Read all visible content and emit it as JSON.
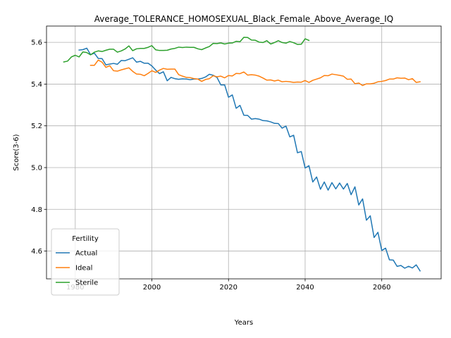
{
  "chart_data": {
    "type": "line",
    "title": "Average_TOLERANCE_HOMOSEXUAL_Black_Female_Above_Average_IQ",
    "xlabel": "Years",
    "ylabel": "Score(3-6)",
    "xlim": [
      1972.5,
      2075.5
    ],
    "ylim": [
      4.467,
      5.678
    ],
    "xticks": [
      1980,
      2000,
      2020,
      2040,
      2060
    ],
    "yticks": [
      4.6,
      4.8,
      5.0,
      5.2,
      5.4,
      5.6
    ],
    "xtick_labels": [
      "1980",
      "2000",
      "2020",
      "2040",
      "2060"
    ],
    "ytick_labels": [
      "4.6",
      "4.8",
      "5.0",
      "5.2",
      "5.4",
      "5.6"
    ],
    "grid": true,
    "legend_title": "Fertility",
    "legend_position": "lower-left",
    "series": [
      {
        "name": "Actual",
        "color": "#1f77b4",
        "x": [
          1981,
          1982,
          1983,
          1984,
          1985,
          1986,
          1987,
          1988,
          1989,
          1990,
          1991,
          1992,
          1993,
          1994,
          1995,
          1996,
          1997,
          1998,
          1999,
          2000,
          2001,
          2002,
          2003,
          2004,
          2005,
          2006,
          2007,
          2008,
          2009,
          2010,
          2011,
          2012,
          2013,
          2014,
          2015,
          2016,
          2017,
          2018,
          2019,
          2020,
          2021,
          2022,
          2023,
          2024,
          2025,
          2026,
          2027,
          2028,
          2029,
          2030,
          2031,
          2032,
          2033,
          2034,
          2035,
          2036,
          2037,
          2038,
          2039,
          2040,
          2041,
          2042,
          2043,
          2044,
          2045,
          2046,
          2047,
          2048,
          2049,
          2050,
          2051,
          2052,
          2053,
          2054,
          2055,
          2056,
          2057,
          2058,
          2059,
          2060,
          2061,
          2062,
          2063,
          2064,
          2065,
          2066,
          2067,
          2068,
          2069,
          2070
        ],
        "values": [
          5.563,
          5.565,
          5.572,
          5.541,
          5.548,
          5.523,
          5.522,
          5.492,
          5.496,
          5.499,
          5.495,
          5.513,
          5.512,
          5.519,
          5.526,
          5.505,
          5.509,
          5.5,
          5.5,
          5.487,
          5.467,
          5.45,
          5.459,
          5.416,
          5.432,
          5.426,
          5.423,
          5.425,
          5.424,
          5.421,
          5.424,
          5.424,
          5.427,
          5.434,
          5.447,
          5.442,
          5.432,
          5.396,
          5.396,
          5.337,
          5.348,
          5.284,
          5.298,
          5.251,
          5.25,
          5.232,
          5.235,
          5.232,
          5.225,
          5.224,
          5.219,
          5.212,
          5.211,
          5.189,
          5.199,
          5.147,
          5.155,
          5.071,
          5.077,
          4.998,
          5.009,
          4.931,
          4.955,
          4.896,
          4.931,
          4.892,
          4.928,
          4.898,
          4.926,
          4.897,
          4.924,
          4.87,
          4.908,
          4.821,
          4.85,
          4.748,
          4.769,
          4.665,
          4.69,
          4.603,
          4.614,
          4.558,
          4.557,
          4.527,
          4.531,
          4.518,
          4.527,
          4.519,
          4.534,
          4.505
        ]
      },
      {
        "name": "Ideal",
        "color": "#ff7f0e",
        "x": [
          1984,
          1985,
          1986,
          1987,
          1988,
          1989,
          1990,
          1991,
          1992,
          1993,
          1994,
          1995,
          1996,
          1997,
          1998,
          1999,
          2000,
          2001,
          2002,
          2003,
          2004,
          2005,
          2006,
          2007,
          2008,
          2009,
          2010,
          2011,
          2012,
          2013,
          2014,
          2015,
          2016,
          2017,
          2018,
          2019,
          2020,
          2021,
          2022,
          2023,
          2024,
          2025,
          2026,
          2027,
          2028,
          2029,
          2030,
          2031,
          2032,
          2033,
          2034,
          2035,
          2036,
          2037,
          2038,
          2039,
          2040,
          2041,
          2042,
          2043,
          2044,
          2045,
          2046,
          2047,
          2048,
          2049,
          2050,
          2051,
          2052,
          2053,
          2054,
          2055,
          2056,
          2057,
          2058,
          2059,
          2060,
          2061,
          2062,
          2063,
          2064,
          2065,
          2066,
          2067,
          2068,
          2069,
          2070
        ],
        "values": [
          5.49,
          5.49,
          5.515,
          5.505,
          5.48,
          5.488,
          5.464,
          5.462,
          5.468,
          5.473,
          5.478,
          5.461,
          5.448,
          5.447,
          5.44,
          5.451,
          5.464,
          5.456,
          5.467,
          5.475,
          5.471,
          5.472,
          5.472,
          5.445,
          5.438,
          5.432,
          5.431,
          5.426,
          5.424,
          5.413,
          5.422,
          5.426,
          5.44,
          5.435,
          5.438,
          5.43,
          5.441,
          5.439,
          5.451,
          5.45,
          5.458,
          5.443,
          5.445,
          5.443,
          5.438,
          5.429,
          5.419,
          5.42,
          5.415,
          5.419,
          5.411,
          5.413,
          5.411,
          5.408,
          5.41,
          5.409,
          5.417,
          5.408,
          5.418,
          5.424,
          5.43,
          5.441,
          5.44,
          5.448,
          5.445,
          5.442,
          5.438,
          5.423,
          5.424,
          5.402,
          5.405,
          5.393,
          5.401,
          5.401,
          5.404,
          5.411,
          5.413,
          5.417,
          5.424,
          5.424,
          5.43,
          5.428,
          5.429,
          5.421,
          5.426,
          5.408,
          5.411
        ]
      },
      {
        "name": "Sterile",
        "color": "#2ca02c",
        "x": [
          1977,
          1978,
          1979,
          1980,
          1981,
          1982,
          1983,
          1984,
          1985,
          1986,
          1987,
          1988,
          1989,
          1990,
          1991,
          1992,
          1993,
          1994,
          1995,
          1996,
          1997,
          1998,
          1999,
          2000,
          2001,
          2002,
          2003,
          2004,
          2005,
          2006,
          2007,
          2008,
          2009,
          2010,
          2011,
          2012,
          2013,
          2014,
          2015,
          2016,
          2017,
          2018,
          2019,
          2020,
          2021,
          2022,
          2023,
          2024,
          2025,
          2026,
          2027,
          2028,
          2029,
          2030,
          2031,
          2032,
          2033,
          2034,
          2035,
          2036,
          2037,
          2038,
          2039,
          2040,
          2041
        ],
        "values": [
          5.506,
          5.51,
          5.53,
          5.538,
          5.53,
          5.554,
          5.551,
          5.54,
          5.553,
          5.559,
          5.556,
          5.562,
          5.567,
          5.567,
          5.553,
          5.559,
          5.568,
          5.583,
          5.56,
          5.569,
          5.571,
          5.571,
          5.576,
          5.584,
          5.564,
          5.561,
          5.561,
          5.562,
          5.568,
          5.571,
          5.577,
          5.575,
          5.577,
          5.576,
          5.576,
          5.569,
          5.565,
          5.573,
          5.58,
          5.595,
          5.594,
          5.597,
          5.592,
          5.596,
          5.597,
          5.605,
          5.603,
          5.624,
          5.623,
          5.611,
          5.61,
          5.601,
          5.599,
          5.608,
          5.592,
          5.599,
          5.608,
          5.599,
          5.596,
          5.604,
          5.598,
          5.59,
          5.591,
          5.617,
          5.609
        ]
      }
    ]
  }
}
